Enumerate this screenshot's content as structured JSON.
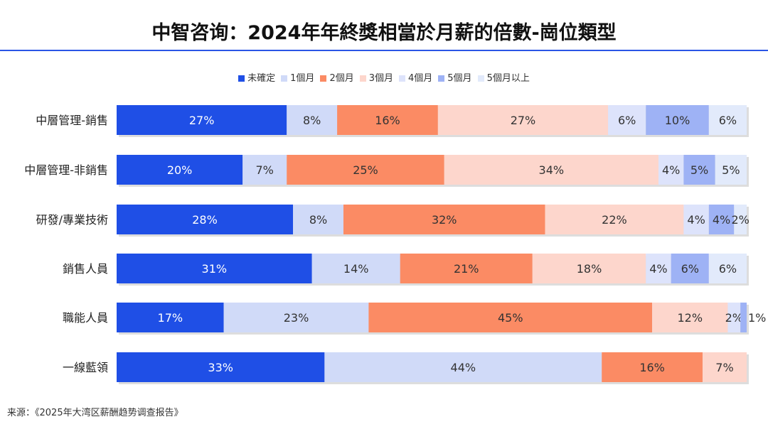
{
  "chart_data": {
    "type": "bar",
    "orientation": "horizontal",
    "stacked": "percent",
    "title": "中智咨询：2024年年終獎相當於月薪的倍數-崗位類型",
    "categories": [
      "中層管理-銷售",
      "中層管理-非銷售",
      "研發/專業技術",
      "銷售人員",
      "職能人員",
      "一線藍領"
    ],
    "series": [
      {
        "name": "未確定",
        "color": "#1f4fe6",
        "values": [
          27,
          20,
          28,
          31,
          17,
          33
        ]
      },
      {
        "name": "1個月",
        "color": "#d0daf8",
        "values": [
          8,
          7,
          8,
          14,
          23,
          44
        ]
      },
      {
        "name": "2個月",
        "color": "#fb8b64",
        "values": [
          16,
          25,
          32,
          21,
          45,
          16
        ]
      },
      {
        "name": "3個月",
        "color": "#fdd6cc",
        "values": [
          27,
          34,
          22,
          18,
          12,
          7
        ]
      },
      {
        "name": "4個月",
        "color": "#dde3fb",
        "values": [
          6,
          4,
          4,
          4,
          2,
          0
        ]
      },
      {
        "name": "5個月",
        "color": "#9eb2f5",
        "values": [
          10,
          5,
          4,
          6,
          1,
          0
        ]
      },
      {
        "name": "5個月以上",
        "color": "#e2eafb",
        "values": [
          6,
          5,
          2,
          6,
          0,
          0
        ]
      }
    ],
    "legend_position": "top",
    "grid": false
  },
  "source": "来源：《2025年大湾区薪酬趋势调查报告》"
}
